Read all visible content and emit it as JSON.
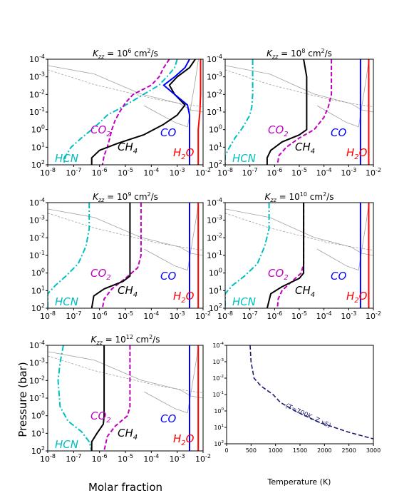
{
  "figure": {
    "ylabel": "Pressure (bar)",
    "xlabel_left": "Molar fraction",
    "xlabel_right": "Temperature (K)"
  },
  "colors": {
    "CH4": "#000000",
    "CO": "#0000ff",
    "H2O": "#ff0000",
    "CO2": "#bf00bf",
    "HCN": "#00bfbf",
    "profile": "#1a1a6e",
    "equilibrium": "#a0a0a0"
  },
  "chart_data": [
    {
      "type": "line",
      "panel": "kzz-1e6",
      "title_exp": "6",
      "xscale": "log",
      "yscale": "log",
      "xlim": [
        1e-08,
        0.01
      ],
      "ylim": [
        100,
        0.0001
      ],
      "xtick_exps": [
        "-8",
        "-7",
        "-6",
        "-5",
        "-4",
        "-3",
        "-2"
      ],
      "ytick_exps": [
        "-4",
        "-3",
        "-2",
        "-1",
        "0",
        "1",
        "2"
      ],
      "labels": {
        "HCN": "HCN",
        "CO2": "CO",
        "CH4": "CH",
        "CO": "CO",
        "H2O": "H",
        "sub2": "2",
        "sub4": "4",
        "O": "O"
      },
      "series": [
        {
          "key": "HCN",
          "points": [
            [
              0.001,
              0.0001
            ],
            [
              0.0008,
              0.0003
            ],
            [
              0.0004,
              0.001
            ],
            [
              0.0002,
              0.003
            ],
            [
              5e-05,
              0.01
            ],
            [
              8e-06,
              0.05
            ],
            [
              2e-06,
              0.15
            ],
            [
              1e-06,
              0.4
            ],
            [
              5e-07,
              1
            ],
            [
              2e-07,
              3
            ],
            [
              8e-08,
              10
            ],
            [
              5e-08,
              30
            ],
            [
              4e-08,
              100
            ]
          ]
        },
        {
          "key": "CO2",
          "points": [
            [
              0.0005,
              0.0001
            ],
            [
              0.0003,
              0.0003
            ],
            [
              0.0002,
              0.001
            ],
            [
              0.0001,
              0.003
            ],
            [
              2e-05,
              0.01
            ],
            [
              1e-05,
              0.03
            ],
            [
              6e-06,
              0.1
            ],
            [
              4e-06,
              0.3
            ],
            [
              3e-06,
              1
            ],
            [
              2.5e-06,
              3
            ],
            [
              2e-06,
              10
            ],
            [
              1.5e-06,
              30
            ],
            [
              1.3e-06,
              100
            ]
          ]
        },
        {
          "key": "CH4",
          "points": [
            [
              0.005,
              0.0001
            ],
            [
              0.003,
              0.0003
            ],
            [
              0.001,
              0.001
            ],
            [
              0.0005,
              0.003
            ],
            [
              0.0008,
              0.01
            ],
            [
              0.002,
              0.04
            ],
            [
              0.001,
              0.15
            ],
            [
              0.0003,
              0.5
            ],
            [
              5e-05,
              2
            ],
            [
              5e-06,
              6
            ],
            [
              1e-06,
              15
            ],
            [
              5e-07,
              40
            ],
            [
              5e-07,
              100
            ]
          ]
        },
        {
          "key": "CO",
          "points": [
            [
              0.003,
              0.0001
            ],
            [
              0.002,
              0.0003
            ],
            [
              0.0008,
              0.001
            ],
            [
              0.0003,
              0.003
            ],
            [
              0.0008,
              0.01
            ],
            [
              0.0025,
              0.04
            ],
            [
              0.003,
              0.15
            ],
            [
              0.003,
              1
            ],
            [
              0.003,
              10
            ],
            [
              0.003,
              100
            ]
          ]
        },
        {
          "key": "H2O",
          "points": [
            [
              0.008,
              0.0001
            ],
            [
              0.008,
              0.01
            ],
            [
              0.0075,
              0.1
            ],
            [
              0.0065,
              1
            ],
            [
              0.0065,
              100
            ]
          ]
        }
      ]
    },
    {
      "type": "line",
      "panel": "kzz-1e8",
      "title_exp": "8",
      "xscale": "log",
      "yscale": "log",
      "xlim": [
        1e-08,
        0.01
      ],
      "ylim": [
        100,
        0.0001
      ],
      "xtick_exps": [
        "-8",
        "-7",
        "-6",
        "-5",
        "-4",
        "-3",
        "-2"
      ],
      "ytick_exps": [
        "-4",
        "-3",
        "-2",
        "-1",
        "0",
        "1",
        "2"
      ],
      "labels": {
        "HCN": "HCN",
        "CO2": "CO",
        "CH4": "CH",
        "CO": "CO",
        "H2O": "H",
        "sub2": "2",
        "sub4": "4",
        "O": "O"
      },
      "series": [
        {
          "key": "HCN",
          "points": [
            [
              1.3e-07,
              0.0001
            ],
            [
              1.3e-07,
              0.01
            ],
            [
              1.2e-07,
              0.05
            ],
            [
              1e-07,
              0.15
            ],
            [
              5e-08,
              0.8
            ],
            [
              2.5e-08,
              3
            ],
            [
              1.5e-08,
              10
            ],
            [
              1e-08,
              30
            ],
            [
              1e-08,
              100
            ]
          ]
        },
        {
          "key": "CO2",
          "points": [
            [
              0.0002,
              0.0001
            ],
            [
              0.0002,
              0.01
            ],
            [
              0.00015,
              0.05
            ],
            [
              0.0001,
              0.2
            ],
            [
              4e-05,
              1
            ],
            [
              1e-05,
              3
            ],
            [
              3e-06,
              10
            ],
            [
              1.5e-06,
              30
            ],
            [
              1.3e-06,
              100
            ]
          ]
        },
        {
          "key": "CH4",
          "points": [
            [
              1.5e-05,
              0.0001
            ],
            [
              2e-05,
              0.001
            ],
            [
              2e-05,
              0.01
            ],
            [
              2e-05,
              0.1
            ],
            [
              2e-05,
              1
            ],
            [
              1e-05,
              2
            ],
            [
              2e-06,
              5
            ],
            [
              7e-07,
              15
            ],
            [
              5e-07,
              40
            ],
            [
              5e-07,
              100
            ]
          ]
        },
        {
          "key": "CO",
          "points": [
            [
              0.003,
              0.0001
            ],
            [
              0.003,
              100
            ]
          ]
        },
        {
          "key": "H2O",
          "points": [
            [
              0.0065,
              0.0001
            ],
            [
              0.0065,
              100
            ]
          ]
        }
      ]
    },
    {
      "type": "line",
      "panel": "kzz-1e9",
      "title_exp": "9",
      "xscale": "log",
      "yscale": "log",
      "xlim": [
        1e-08,
        0.01
      ],
      "ylim": [
        100,
        0.0001
      ],
      "xtick_exps": [
        "-8",
        "-7",
        "-6",
        "-5",
        "-4",
        "-3",
        "-2"
      ],
      "ytick_exps": [
        "-4",
        "-3",
        "-2",
        "-1",
        "0",
        "1",
        "2"
      ],
      "labels": {
        "HCN": "HCN",
        "CO2": "CO",
        "CH4": "CH",
        "CO": "CO",
        "H2O": "H",
        "sub2": "2",
        "sub4": "4",
        "O": "O"
      },
      "series": [
        {
          "key": "HCN",
          "points": [
            [
              4e-07,
              0.0001
            ],
            [
              4e-07,
              0.003
            ],
            [
              3e-07,
              0.03
            ],
            [
              1.5e-07,
              0.3
            ],
            [
              5e-08,
              1.5
            ],
            [
              2e-08,
              5
            ],
            [
              1e-08,
              15
            ],
            [
              1e-08,
              100
            ]
          ]
        },
        {
          "key": "CO2",
          "points": [
            [
              4e-05,
              0.0001
            ],
            [
              4e-05,
              0.1
            ],
            [
              3e-05,
              0.5
            ],
            [
              1e-05,
              2
            ],
            [
              3e-06,
              8
            ],
            [
              1.5e-06,
              30
            ],
            [
              1.3e-06,
              100
            ]
          ]
        },
        {
          "key": "CH4",
          "points": [
            [
              1.5e-05,
              0.0001
            ],
            [
              1.5e-05,
              0.1
            ],
            [
              1.5e-05,
              1.5
            ],
            [
              8e-06,
              3
            ],
            [
              1.5e-06,
              8
            ],
            [
              6e-07,
              20
            ],
            [
              5e-07,
              100
            ]
          ]
        },
        {
          "key": "CO",
          "points": [
            [
              0.003,
              0.0001
            ],
            [
              0.003,
              100
            ]
          ]
        },
        {
          "key": "H2O",
          "points": [
            [
              0.0065,
              0.0001
            ],
            [
              0.0065,
              100
            ]
          ]
        }
      ]
    },
    {
      "type": "line",
      "panel": "kzz-1e10",
      "title_exp": "10",
      "xscale": "log",
      "yscale": "log",
      "xlim": [
        1e-08,
        0.01
      ],
      "ylim": [
        100,
        0.0001
      ],
      "xtick_exps": [
        "-8",
        "-7",
        "-6",
        "-5",
        "-4",
        "-3",
        "-2"
      ],
      "ytick_exps": [
        "-4",
        "-3",
        "-2",
        "-1",
        "0",
        "1",
        "2"
      ],
      "labels": {
        "HCN": "HCN",
        "CO2": "CO",
        "CH4": "CH",
        "CO": "CO",
        "H2O": "H",
        "sub2": "2",
        "sub4": "4",
        "O": "O"
      },
      "series": [
        {
          "key": "HCN",
          "points": [
            [
              6e-07,
              0.0001
            ],
            [
              6e-07,
              0.003
            ],
            [
              4e-07,
              0.03
            ],
            [
              2e-07,
              0.3
            ],
            [
              6e-08,
              1.5
            ],
            [
              2e-08,
              5
            ],
            [
              1e-08,
              15
            ],
            [
              1e-08,
              100
            ]
          ]
        },
        {
          "key": "CO2",
          "points": [
            [
              1.5e-05,
              0.0001
            ],
            [
              1.5e-05,
              0.3
            ],
            [
              1.2e-05,
              1
            ],
            [
              5e-06,
              3
            ],
            [
              2e-06,
              10
            ],
            [
              1.4e-06,
              30
            ],
            [
              1.3e-06,
              100
            ]
          ]
        },
        {
          "key": "CH4",
          "points": [
            [
              1.5e-05,
              0.0001
            ],
            [
              1.5e-05,
              1
            ],
            [
              1e-05,
              2
            ],
            [
              2e-06,
              6
            ],
            [
              7e-07,
              15
            ],
            [
              5e-07,
              100
            ]
          ]
        },
        {
          "key": "CO",
          "points": [
            [
              0.003,
              0.0001
            ],
            [
              0.003,
              100
            ]
          ]
        },
        {
          "key": "H2O",
          "points": [
            [
              0.0065,
              0.0001
            ],
            [
              0.0065,
              100
            ]
          ]
        }
      ]
    },
    {
      "type": "line",
      "panel": "kzz-1e12",
      "title_exp": "12",
      "xscale": "log",
      "yscale": "log",
      "xlim": [
        1e-08,
        0.01
      ],
      "ylim": [
        100,
        0.0001
      ],
      "xtick_exps": [
        "-8",
        "-7",
        "-6",
        "-5",
        "-4",
        "-3",
        "-2"
      ],
      "ytick_exps": [
        "-4",
        "-3",
        "-2",
        "-1",
        "0",
        "1",
        "2"
      ],
      "labels": {
        "HCN": "HCN",
        "CO2": "CO",
        "CH4": "CH",
        "CO": "CO",
        "H2O": "H",
        "sub2": "2",
        "sub4": "4",
        "O": "O"
      },
      "series": [
        {
          "key": "HCN",
          "points": [
            [
              4e-08,
              0.0001
            ],
            [
              3e-08,
              0.001
            ],
            [
              2.5e-08,
              0.01
            ],
            [
              3e-08,
              0.3
            ],
            [
              6e-08,
              2
            ],
            [
              2e-07,
              8
            ],
            [
              4e-07,
              30
            ],
            [
              5e-07,
              100
            ]
          ]
        },
        {
          "key": "CO2",
          "points": [
            [
              1.5e-05,
              0.0001
            ],
            [
              1.5e-05,
              0.3
            ],
            [
              1.2e-05,
              1
            ],
            [
              4e-06,
              4
            ],
            [
              2e-06,
              15
            ],
            [
              1.5e-06,
              100
            ]
          ]
        },
        {
          "key": "CH4",
          "points": [
            [
              1.5e-06,
              0.0001
            ],
            [
              1.5e-06,
              1
            ],
            [
              1.4e-06,
              3
            ],
            [
              8e-07,
              10
            ],
            [
              5e-07,
              30
            ],
            [
              5e-07,
              100
            ]
          ]
        },
        {
          "key": "CO",
          "points": [
            [
              0.003,
              0.0001
            ],
            [
              0.003,
              100
            ]
          ]
        },
        {
          "key": "H2O",
          "points": [
            [
              0.0065,
              0.0001
            ],
            [
              0.0065,
              100
            ]
          ]
        }
      ]
    },
    {
      "type": "line",
      "panel": "temperature-profile",
      "xscale": "linear",
      "yscale": "log",
      "xlim": [
        0,
        3000
      ],
      "ylim": [
        100,
        0.0001
      ],
      "xticks": [
        "0",
        "500",
        "1000",
        "1500",
        "2000",
        "2500",
        "3000"
      ],
      "ytick_exps": [
        "-4",
        "-3",
        "-2",
        "-1",
        "0",
        "1",
        "2"
      ],
      "annotation": "(T=700K, Z x5)",
      "series": [
        {
          "key": "profile",
          "points": [
            [
              480,
              0.0001
            ],
            [
              500,
              0.001
            ],
            [
              560,
              0.01
            ],
            [
              700,
              0.03
            ],
            [
              950,
              0.1
            ],
            [
              1100,
              0.3
            ],
            [
              1400,
              1
            ],
            [
              1900,
              5
            ],
            [
              2500,
              20
            ],
            [
              3000,
              50
            ]
          ]
        }
      ]
    }
  ]
}
